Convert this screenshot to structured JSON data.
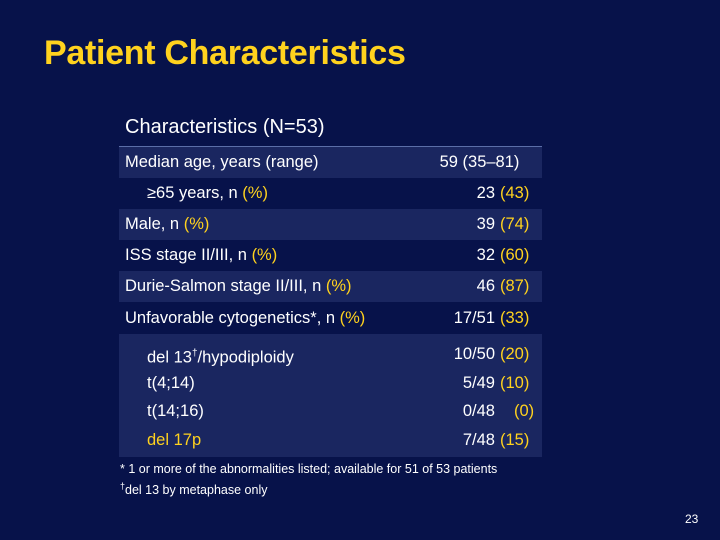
{
  "title": "Patient Characteristics",
  "table": {
    "header": "Characteristics (N=53)",
    "rows": [
      {
        "label": "Median age, years (range)",
        "value": "59 (35–81)"
      },
      {
        "label_main": "≥65 years, n ",
        "label_unit": "(%)",
        "n": "23",
        "pct": "(43)"
      },
      {
        "label_main": "Male, n ",
        "label_unit": "(%)",
        "n": "39",
        "pct": "(74)"
      },
      {
        "label_main": "ISS stage II/III, n ",
        "label_unit": "(%)",
        "n": "32",
        "pct": "(60)"
      },
      {
        "label_main": "Durie-Salmon stage II/III, n ",
        "label_unit": "(%)",
        "n": "46",
        "pct": "(87)"
      },
      {
        "label_main": "Unfavorable cytogenetics*, n ",
        "label_unit": "(%)",
        "n": "17/51",
        "pct": "(33)"
      }
    ],
    "subrows": [
      {
        "label_main": "del 13",
        "label_sup": "†",
        "label_rest": "/hypodiploidy",
        "n": "10/50",
        "pct": "(20)"
      },
      {
        "label": "t(4;14)",
        "n": "5/49",
        "pct": "(10)"
      },
      {
        "label": "t(14;16)",
        "n": "0/48",
        "pct": "(0)"
      },
      {
        "label": "del 17p",
        "n": "7/48",
        "pct": "(15)"
      }
    ]
  },
  "footnotes": {
    "line1": "* 1 or more of the abnormalities listed; available for 51 of 53 patients",
    "line2_sup": "†",
    "line2": "del 13 by metaphase only"
  },
  "page_number": "23",
  "colors": {
    "background": "#07124a",
    "accent": "#ffd21e",
    "row_shade": "#1a2660"
  }
}
